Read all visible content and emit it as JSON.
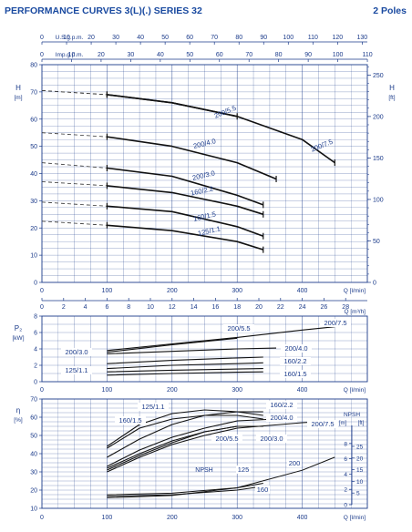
{
  "header": {
    "title": "PERFORMANCE CURVES 3(L)(.) SERIES 32",
    "poles": "2 Poles"
  },
  "axes": {
    "usgpm_label": "U.S.g.p.m.",
    "usgpm_ticks": [
      "0",
      "10",
      "20",
      "30",
      "40",
      "50",
      "60",
      "70",
      "80",
      "90",
      "100",
      "110",
      "120",
      "130"
    ],
    "impgpm_label": "Imp.g.p.m.",
    "impgpm_ticks": [
      "0",
      "10",
      "20",
      "30",
      "40",
      "50",
      "60",
      "70",
      "80",
      "90",
      "100",
      "110"
    ],
    "q_lmin_ticks": [
      "0",
      "100",
      "200",
      "300",
      "400"
    ],
    "q_lmin_label": "Q [l/min]",
    "q_m3h_ticks": [
      "0",
      "2",
      "4",
      "6",
      "8",
      "10",
      "12",
      "14",
      "16",
      "18",
      "20",
      "22",
      "24",
      "26",
      "28"
    ],
    "q_m3h_label": "Q [m³/h]",
    "h_m_label": "H",
    "h_m_unit": "[m]",
    "h_m_ticks": [
      "0",
      "10",
      "20",
      "30",
      "40",
      "50",
      "60",
      "70",
      "80"
    ],
    "h_ft_label": "H",
    "h_ft_unit": "[ft]",
    "h_ft_ticks": [
      "0",
      "50",
      "100",
      "150",
      "200",
      "250"
    ],
    "p2_label": "P₂",
    "p2_unit": "[kW]",
    "p2_ticks": [
      "0",
      "2",
      "4",
      "6",
      "8"
    ],
    "eta_label": "η",
    "eta_unit": "[%]",
    "eta_ticks": [
      "10",
      "20",
      "30",
      "40",
      "50",
      "60",
      "70"
    ],
    "npsh_label": "NPSH",
    "npsh_m_unit": "[m]",
    "npsh_ft_unit": "[ft]",
    "npsh_m_ticks": [
      "0",
      "2",
      "4",
      "6",
      "8"
    ],
    "npsh_ft_ticks": [
      "5",
      "10",
      "15",
      "20",
      "25"
    ]
  },
  "chart_data": [
    {
      "type": "line",
      "panel": "head",
      "x_unit": "l/min",
      "xlim": [
        0,
        500
      ],
      "ylim": [
        0,
        80
      ],
      "series": [
        {
          "name": "200/7.5",
          "x": [
            0,
            100,
            200,
            300,
            400,
            450
          ],
          "y": [
            70.5,
            69,
            66,
            61,
            52.5,
            44
          ],
          "range_start": 100,
          "range_end": 450
        },
        {
          "name": "200/5.5",
          "x": [
            0,
            100,
            200,
            300,
            400,
            450
          ],
          "y": [
            70.5,
            69,
            66,
            61,
            52.5,
            44
          ],
          "range_start": 100,
          "range_end": 300
        },
        {
          "name": "200/4.0",
          "x": [
            0,
            100,
            200,
            300,
            360
          ],
          "y": [
            55,
            53.5,
            50,
            44,
            38
          ],
          "range_start": 100,
          "range_end": 360
        },
        {
          "name": "200/3.0",
          "x": [
            0,
            100,
            200,
            300,
            340
          ],
          "y": [
            44,
            42,
            39,
            32,
            28.5
          ],
          "range_start": 100,
          "range_end": 340
        },
        {
          "name": "160/2.2",
          "x": [
            0,
            100,
            200,
            300,
            340
          ],
          "y": [
            37,
            35.5,
            33,
            28,
            25
          ],
          "range_start": 100,
          "range_end": 340
        },
        {
          "name": "160/1.5",
          "x": [
            0,
            100,
            200,
            300,
            340
          ],
          "y": [
            29.5,
            28,
            26,
            20.5,
            17
          ],
          "range_start": 100,
          "range_end": 340
        },
        {
          "name": "125/1.1",
          "x": [
            0,
            100,
            200,
            300,
            340
          ],
          "y": [
            22.5,
            21,
            19,
            15,
            12
          ],
          "range_start": 100,
          "range_end": 340
        }
      ]
    },
    {
      "type": "line",
      "panel": "power",
      "x_unit": "l/min",
      "xlim": [
        0,
        500
      ],
      "ylim": [
        0,
        8
      ],
      "series": [
        {
          "name": "200/7.5",
          "x": [
            100,
            200,
            300,
            400,
            450
          ],
          "y": [
            3.8,
            4.6,
            5.4,
            6.3,
            6.7
          ]
        },
        {
          "name": "200/5.5",
          "x": [
            100,
            200,
            300
          ],
          "y": [
            3.6,
            4.5,
            5.3
          ]
        },
        {
          "name": "200/4.0",
          "x": [
            100,
            200,
            300,
            360
          ],
          "y": [
            3.4,
            3.7,
            4,
            4.1
          ]
        },
        {
          "name": "200/3.0",
          "x": [
            100,
            200,
            300,
            340
          ],
          "y": [
            2.2,
            2.6,
            2.9,
            3
          ]
        },
        {
          "name": "160/2.2",
          "x": [
            100,
            200,
            300,
            340
          ],
          "y": [
            1.6,
            2,
            2.2,
            2.3
          ]
        },
        {
          "name": "160/1.5",
          "x": [
            100,
            200,
            300,
            340
          ],
          "y": [
            1.2,
            1.4,
            1.55,
            1.6
          ]
        },
        {
          "name": "125/1.1",
          "x": [
            100,
            200,
            300,
            340
          ],
          "y": [
            0.8,
            1,
            1.15,
            1.2
          ]
        }
      ]
    },
    {
      "type": "line",
      "panel": "efficiency",
      "x_unit": "l/min",
      "xlim": [
        0,
        500
      ],
      "ylim": [
        10,
        70
      ],
      "series": [
        {
          "name": "125/1.1",
          "x": [
            100,
            150,
            200,
            250,
            300,
            340
          ],
          "y": [
            44,
            56,
            62,
            64,
            63,
            61
          ]
        },
        {
          "name": "160/1.5",
          "x": [
            100,
            150,
            200,
            250,
            300,
            340
          ],
          "y": [
            43,
            54,
            59,
            61,
            61,
            59
          ]
        },
        {
          "name": "160/2.2",
          "x": [
            100,
            150,
            200,
            250,
            300,
            340
          ],
          "y": [
            38,
            48,
            56,
            61,
            63,
            63
          ]
        },
        {
          "name": "200/4.0",
          "x": [
            100,
            150,
            200,
            250,
            300,
            360
          ],
          "y": [
            33,
            42,
            49,
            54,
            58,
            59
          ]
        },
        {
          "name": "200/5.5",
          "x": [
            100,
            150,
            200,
            250,
            300
          ],
          "y": [
            32,
            40,
            47,
            52,
            55
          ]
        },
        {
          "name": "200/3.0",
          "x": [
            100,
            150,
            200,
            250,
            300,
            340
          ],
          "y": [
            31,
            39,
            46,
            52,
            55,
            55
          ]
        },
        {
          "name": "200/7.5",
          "x": [
            100,
            150,
            200,
            250,
            300,
            400,
            450
          ],
          "y": [
            30,
            38,
            45,
            50,
            54,
            57,
            58
          ]
        }
      ]
    },
    {
      "type": "line",
      "panel": "npsh",
      "x_unit": "l/min",
      "y_unit": "m",
      "ylim": [
        0,
        10
      ],
      "series": [
        {
          "name": "125",
          "x": [
            100,
            200,
            300,
            340
          ],
          "y": [
            1.3,
            1.5,
            2.2,
            2.8
          ]
        },
        {
          "name": "160",
          "x": [
            100,
            200,
            300,
            340
          ],
          "y": [
            1.1,
            1.3,
            1.9,
            2.4
          ]
        },
        {
          "name": "200",
          "x": [
            100,
            200,
            300,
            400,
            450
          ],
          "y": [
            0.9,
            1.2,
            2.2,
            4.5,
            6.2
          ]
        }
      ]
    }
  ]
}
